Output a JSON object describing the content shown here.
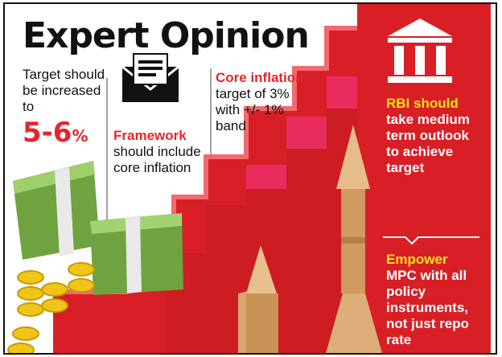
{
  "title": "Expert Opinion",
  "target_text": "Target should be increased to",
  "target_value": "5-6",
  "target_unit": "%",
  "framework": {
    "highlight": "Framework",
    "rest": "should include core inflation"
  },
  "core": {
    "highlight": "Core inflation",
    "rest": "target of 3% with +/- 1% band"
  },
  "rbi": {
    "highlight": "RBI should",
    "rest": "take medium term outlook to achieve target"
  },
  "empower": {
    "highlight": "Empower",
    "rest": "MPC with all policy instruments, not just repo rate"
  },
  "icons": [
    "envelope-icon",
    "bank-icon"
  ],
  "colors": {
    "red": "#e8252b",
    "yellow": "#ffe21a",
    "money": "#7db04a"
  }
}
